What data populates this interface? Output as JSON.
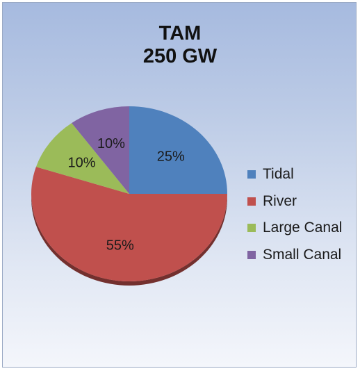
{
  "chart_data": {
    "type": "pie",
    "title_lines": [
      "TAM",
      "250 GW"
    ],
    "slices": [
      {
        "name": "Tidal",
        "value": 25,
        "label": "25%",
        "color": "#4f81bd"
      },
      {
        "name": "River",
        "value": 55,
        "label": "55%",
        "color": "#c0504d"
      },
      {
        "name": "Large Canal",
        "value": 10,
        "label": "10%",
        "color": "#9bbb59"
      },
      {
        "name": "Small Canal",
        "value": 10,
        "label": "10%",
        "color": "#8064a2"
      }
    ],
    "legend_position": "right",
    "style": "3d-tilted"
  }
}
